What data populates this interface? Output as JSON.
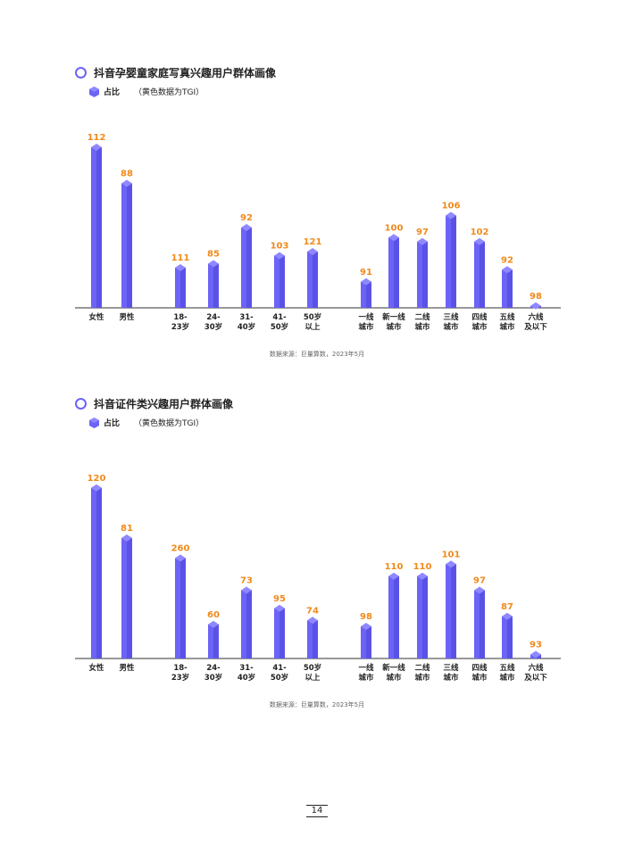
{
  "chart_data": [
    {
      "type": "bar",
      "title": "抖音孕婴童家庭写真兴趣用户群体画像",
      "legend": "占比",
      "note": "（黄色数据为TGI）",
      "categories": [
        [
          "女性"
        ],
        [
          "男性"
        ],
        [
          "18-",
          "23岁"
        ],
        [
          "24-",
          "30岁"
        ],
        [
          "31-",
          "40岁"
        ],
        [
          "41-",
          "50岁"
        ],
        [
          "50岁",
          "以上"
        ],
        [
          "一线",
          "城市"
        ],
        [
          "新一线",
          "城市"
        ],
        [
          "二线",
          "城市"
        ],
        [
          "三线",
          "城市"
        ],
        [
          "四线",
          "城市"
        ],
        [
          "五线",
          "城市"
        ],
        [
          "六线",
          "及以下"
        ]
      ],
      "values": [
        80,
        62,
        20,
        22,
        40,
        26,
        28,
        13,
        35,
        33,
        46,
        33,
        19,
        1
      ],
      "tgi": [
        "112",
        "88",
        "111",
        "85",
        "92",
        "103",
        "121",
        "91",
        "100",
        "97",
        "106",
        "102",
        "92",
        "98"
      ],
      "source": "数据来源：巨量算数，2023年5月"
    },
    {
      "type": "bar",
      "title": "抖音证件类兴趣用户群体画像",
      "legend": "占比",
      "note": "（黄色数据为TGI）",
      "categories": [
        [
          "女性"
        ],
        [
          "男性"
        ],
        [
          "18-",
          "23岁"
        ],
        [
          "24-",
          "30岁"
        ],
        [
          "31-",
          "40岁"
        ],
        [
          "41-",
          "50岁"
        ],
        [
          "50岁",
          "以上"
        ],
        [
          "一线",
          "城市"
        ],
        [
          "新一线",
          "城市"
        ],
        [
          "二线",
          "城市"
        ],
        [
          "三线",
          "城市"
        ],
        [
          "四线",
          "城市"
        ],
        [
          "五线",
          "城市"
        ],
        [
          "六线",
          "及以下"
        ]
      ],
      "values": [
        85,
        60,
        50,
        17,
        34,
        25,
        19,
        16,
        41,
        41,
        47,
        34,
        21,
        2
      ],
      "tgi": [
        "120",
        "81",
        "260",
        "60",
        "73",
        "95",
        "74",
        "98",
        "110",
        "110",
        "101",
        "97",
        "87",
        "93"
      ],
      "source": "数据来源：巨量算数，2023年5月"
    }
  ],
  "page": {
    "number": "14"
  },
  "colors": {
    "bar": "#6c63f7",
    "bar_top": "#8f88ff",
    "tgi": "#f08a1c",
    "axis": "#333333",
    "title_dot": "#6c63f7"
  }
}
